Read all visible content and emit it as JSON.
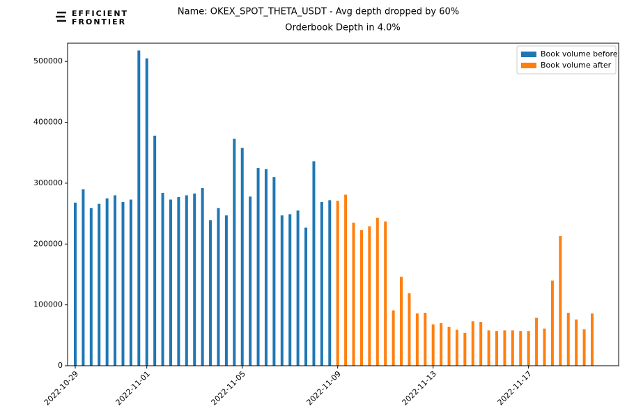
{
  "logo": [
    "EFFICIENT",
    "FRONTIER"
  ],
  "chart_data": {
    "type": "bar",
    "title": "Name: OKEX_SPOT_THETA_USDT - Avg depth dropped by 60%",
    "subtitle": "Orderbook Depth in 4.0%",
    "categories": [
      "2022-10-29",
      null,
      null,
      null,
      null,
      null,
      null,
      null,
      null,
      "2022-11-01",
      null,
      null,
      null,
      null,
      null,
      null,
      null,
      null,
      null,
      null,
      null,
      "2022-11-05",
      null,
      null,
      null,
      null,
      null,
      null,
      null,
      null,
      null,
      null,
      null,
      "2022-11-09",
      null,
      null,
      null,
      null,
      null,
      null,
      null,
      null,
      null,
      null,
      null,
      "2022-11-13",
      null,
      null,
      null,
      null,
      null,
      null,
      null,
      null,
      null,
      null,
      null,
      "2022-11-17",
      null,
      null,
      null,
      null,
      null,
      null,
      null,
      null
    ],
    "series": [
      {
        "name": "Book volume before",
        "color": "#1f77b4",
        "values": [
          268000,
          290000,
          259000,
          266000,
          275000,
          280000,
          269000,
          273000,
          518000,
          505000,
          378000,
          284000,
          273000,
          277000,
          280000,
          283000,
          292000,
          239000,
          259000,
          247000,
          373000,
          358000,
          278000,
          325000,
          323000,
          310000,
          247000,
          249000,
          255000,
          227000,
          336000,
          269000,
          272000,
          null,
          null,
          null,
          null,
          null,
          null,
          null,
          null,
          null,
          null,
          null,
          null,
          null,
          null,
          null,
          null,
          null,
          null,
          null,
          null,
          null,
          null,
          null,
          null,
          null,
          null,
          null,
          null,
          null,
          null,
          null,
          null,
          null
        ]
      },
      {
        "name": "Book volume after",
        "color": "#ff7f0e",
        "values": [
          null,
          null,
          null,
          null,
          null,
          null,
          null,
          null,
          null,
          null,
          null,
          null,
          null,
          null,
          null,
          null,
          null,
          null,
          null,
          null,
          null,
          null,
          null,
          null,
          null,
          null,
          null,
          null,
          null,
          null,
          null,
          null,
          null,
          271000,
          281000,
          235000,
          223000,
          229000,
          243000,
          237000,
          91000,
          146000,
          119000,
          86000,
          87000,
          68000,
          70000,
          64000,
          59000,
          54000,
          73000,
          72000,
          58000,
          57000,
          58000,
          58000,
          57000,
          57000,
          79000,
          61000,
          140000,
          213000,
          87000,
          76000,
          60000,
          86000
        ]
      }
    ],
    "ylim": [
      0,
      530000
    ],
    "yticks": [
      0,
      100000,
      200000,
      300000,
      400000,
      500000
    ],
    "legend": "upper right"
  }
}
